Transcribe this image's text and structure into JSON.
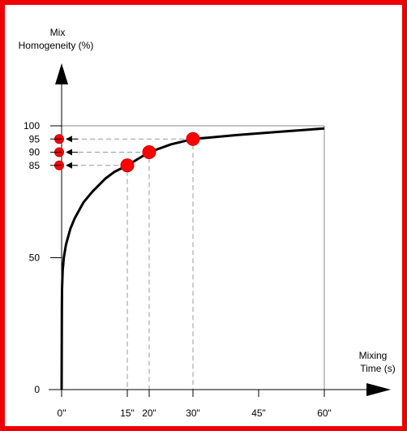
{
  "chart_data": {
    "type": "line",
    "title": "",
    "ylabel": [
      "Mix",
      "Homogeneity (%)"
    ],
    "xlabel": [
      "Mixing",
      "Time (s)"
    ],
    "ylim": [
      0,
      100
    ],
    "xlim": [
      0,
      60
    ],
    "y_ticks": [
      {
        "value": 0,
        "label": "0"
      },
      {
        "value": 50,
        "label": "50"
      },
      {
        "value": 85,
        "label": "85"
      },
      {
        "value": 90,
        "label": "90"
      },
      {
        "value": 95,
        "label": "95"
      },
      {
        "value": 100,
        "label": "100"
      }
    ],
    "x_ticks": [
      {
        "value": 0,
        "label": "0\""
      },
      {
        "value": 15,
        "label": "15\""
      },
      {
        "value": 20,
        "label": "20\""
      },
      {
        "value": 30,
        "label": "30\""
      },
      {
        "value": 45,
        "label": "45\""
      },
      {
        "value": 60,
        "label": "60\""
      }
    ],
    "series": [
      {
        "x": [
          0,
          0.05,
          0.1,
          0.25,
          0.5,
          1,
          2,
          3,
          5,
          7,
          10,
          12,
          15,
          17.5,
          20,
          25,
          30,
          40,
          50,
          60
        ],
        "y": [
          0,
          30,
          38,
          45,
          50,
          55,
          61,
          65,
          71,
          75,
          80,
          82.5,
          85,
          87.5,
          90,
          93,
          95,
          96.5,
          97.8,
          99
        ]
      }
    ],
    "highlight_points": [
      {
        "x": 15,
        "y": 85
      },
      {
        "x": 20,
        "y": 90
      },
      {
        "x": 30,
        "y": 95
      }
    ],
    "grid": false,
    "colors": {
      "frame": "#ee0000",
      "curve": "#000000",
      "marker": "#ff0000",
      "guide": "#999999"
    }
  }
}
